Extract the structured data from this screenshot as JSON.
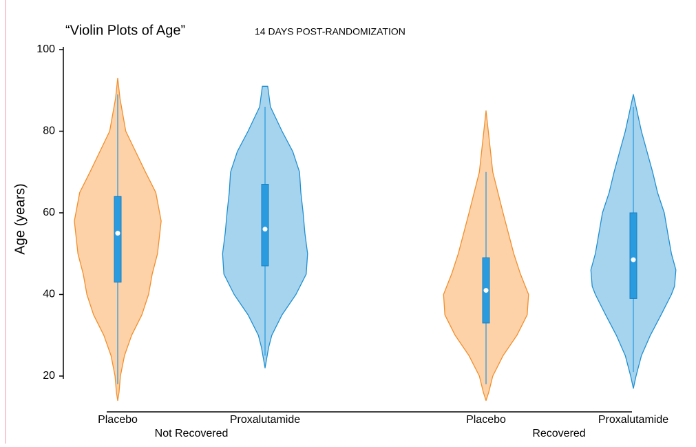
{
  "chart_data": {
    "type": "violin",
    "title": "“Violin Plots of Age”",
    "subtitle": "14 DAYS POST-RANDOMIZATION",
    "y_label": "Age (years)",
    "ylim": [
      20,
      100
    ],
    "yticks": [
      20,
      40,
      60,
      80,
      100
    ],
    "groups": [
      {
        "name": "Not Recovered",
        "violins": [
          {
            "category": "Placebo",
            "color": "#f28e2b",
            "fill": "#fdd2a8",
            "box_color": "#2b9be0",
            "q1": 43,
            "median": 55,
            "q3": 64,
            "whisker_low": 18,
            "whisker_high": 89,
            "density": {
              "age": [
                93,
                88,
                80,
                70,
                65,
                58,
                50,
                45,
                40,
                35,
                30,
                25,
                20,
                16,
                14
              ],
              "value": [
                0,
                0.05,
                0.18,
                0.62,
                0.85,
                0.97,
                0.89,
                0.77,
                0.69,
                0.54,
                0.31,
                0.15,
                0.06,
                0.03,
                0
              ]
            }
          },
          {
            "category": "Proxalutamide",
            "color": "#1f8fd0",
            "fill": "#a6d4ee",
            "box_color": "#2b9be0",
            "q1": 47,
            "median": 56,
            "q3": 67,
            "whisker_low": 25,
            "whisker_high": 86,
            "density": {
              "age": [
                91,
                86,
                80,
                75,
                70,
                65,
                60,
                55,
                50,
                45,
                40,
                35,
                30,
                27,
                22
              ],
              "value": [
                0.06,
                0.12,
                0.38,
                0.62,
                0.77,
                0.8,
                0.85,
                0.89,
                0.95,
                0.92,
                0.69,
                0.38,
                0.15,
                0.08,
                0
              ]
            }
          }
        ]
      },
      {
        "name": "Recovered",
        "violins": [
          {
            "category": "Placebo",
            "color": "#f28e2b",
            "fill": "#fdd2a8",
            "box_color": "#2b9be0",
            "q1": 33,
            "median": 41,
            "q3": 49,
            "whisker_low": 18,
            "whisker_high": 70,
            "density": {
              "age": [
                85,
                80,
                70,
                60,
                50,
                45,
                40,
                35,
                30,
                25,
                20,
                16,
                14
              ],
              "value": [
                0,
                0.05,
                0.15,
                0.38,
                0.62,
                0.77,
                0.95,
                0.92,
                0.69,
                0.38,
                0.15,
                0.06,
                0
              ]
            }
          },
          {
            "category": "Proxalutamide",
            "color": "#1f8fd0",
            "fill": "#a6d4ee",
            "box_color": "#2b9be0",
            "q1": 39,
            "median": 48.5,
            "q3": 60,
            "whisker_low": 21,
            "whisker_high": 86,
            "density": {
              "age": [
                89,
                85,
                80,
                70,
                65,
                60,
                55,
                50,
                46,
                42,
                40,
                35,
                30,
                25,
                20,
                17
              ],
              "value": [
                0,
                0.08,
                0.18,
                0.43,
                0.54,
                0.69,
                0.77,
                0.85,
                0.95,
                0.92,
                0.85,
                0.62,
                0.38,
                0.18,
                0.06,
                0
              ]
            }
          }
        ]
      }
    ]
  }
}
